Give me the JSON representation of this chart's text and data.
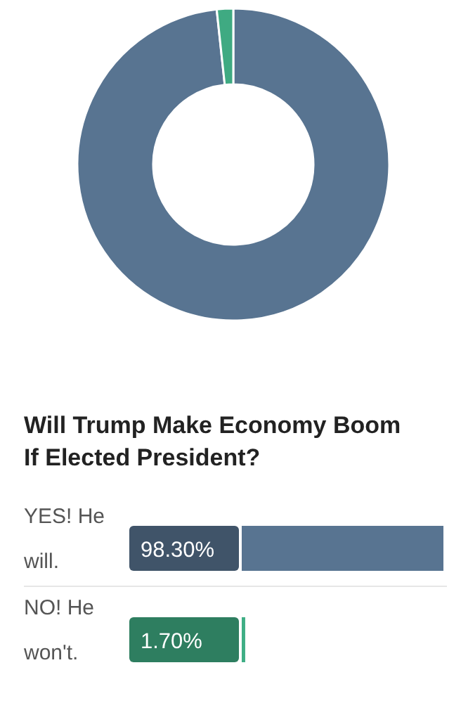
{
  "chart_data": [
    {
      "type": "donut",
      "categories": [
        null,
        null
      ],
      "values": [
        98.3,
        1.7
      ],
      "colors": [
        "#587491",
        "#3faa82"
      ]
    },
    {
      "type": "bar",
      "title": "Will Trump Make Economy Boom If Elected President?",
      "orientation": "horizontal",
      "categories": [
        "YES! He will.",
        "NO! He won't."
      ],
      "values": [
        98.3,
        1.7
      ],
      "colors": [
        "#587491",
        "#3fae85"
      ],
      "xlim": [
        0,
        100
      ],
      "tick_labels": false,
      "value_labels": [
        "98.30%",
        "1.70%"
      ]
    }
  ]
}
